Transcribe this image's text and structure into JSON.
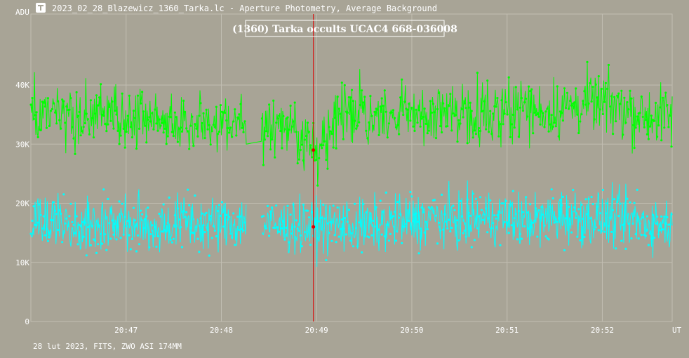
{
  "window": {
    "title": "2023_02_28_Blazewicz_1360_Tarka.lc - Aperture Photometry, Average Background",
    "icon": "tangra-app-icon"
  },
  "footer": "28 lut 2023, FITS, ZWO ASI 174MM",
  "colors": {
    "background": "#a8a496",
    "grid": "#c2beb2",
    "target_series": "#00ff00",
    "comparison_series": "#00ffff",
    "event_line": "#dd0000",
    "text": "#ffffff"
  },
  "chart_data": {
    "type": "line",
    "title": "(1360) Tarka occults UCAC4 668-036008",
    "ylabel": "ADU",
    "xlabel": "UT",
    "y_ticks": [
      0,
      10000,
      20000,
      30000,
      40000
    ],
    "y_tick_labels": [
      "0",
      "10K",
      "20K",
      "30K",
      "40K"
    ],
    "ylim": [
      0,
      52000
    ],
    "x_ticks": [
      1246.9,
      1248.4,
      1249.9,
      1251.4,
      1252.9,
      1254.4
    ],
    "x_tick_labels": [
      "20:47",
      "20:48",
      "20:49",
      "20:50",
      "20:51",
      "20:52"
    ],
    "x_unit": "seconds after 20:26:00 UT",
    "xlim": [
      1245.4,
      1255.5
    ],
    "grid": true,
    "event_line_x": 1249.85,
    "gap": [
      1248.79,
      1249.04
    ],
    "series": [
      {
        "role": "target",
        "x": [
          1245.4,
          1245.8,
          1246.2,
          1246.6,
          1247.0,
          1247.4,
          1247.8,
          1248.2,
          1248.6,
          1248.79,
          1249.04,
          1249.4,
          1249.85,
          1250.2,
          1250.6,
          1251.0,
          1251.4,
          1251.8,
          1252.2,
          1252.6,
          1253.0,
          1253.4,
          1253.8,
          1254.2,
          1254.6,
          1255.0,
          1255.5
        ],
        "values": [
          35000,
          34500,
          34000,
          35500,
          33500,
          34500,
          33000,
          34000,
          33500,
          33000,
          33500,
          34000,
          29000,
          34500,
          35000,
          34000,
          35500,
          34500,
          36000,
          35000,
          36500,
          35500,
          36000,
          37000,
          36500,
          35000,
          34500
        ]
      },
      {
        "role": "comparison",
        "x": [
          1245.4,
          1245.8,
          1246.2,
          1246.6,
          1247.0,
          1247.4,
          1247.8,
          1248.2,
          1248.6,
          1248.79,
          1249.04,
          1249.4,
          1249.85,
          1250.2,
          1250.6,
          1251.0,
          1251.4,
          1251.8,
          1252.2,
          1252.6,
          1253.0,
          1253.4,
          1253.8,
          1254.2,
          1254.6,
          1255.0,
          1255.5
        ],
        "values": [
          16500,
          17000,
          16000,
          17000,
          16500,
          16000,
          17000,
          16500,
          16500,
          17000,
          16500,
          16000,
          16000,
          16500,
          16000,
          16500,
          17000,
          17500,
          17000,
          17500,
          17500,
          17000,
          18000,
          17500,
          17500,
          17000,
          16500
        ]
      }
    ]
  }
}
